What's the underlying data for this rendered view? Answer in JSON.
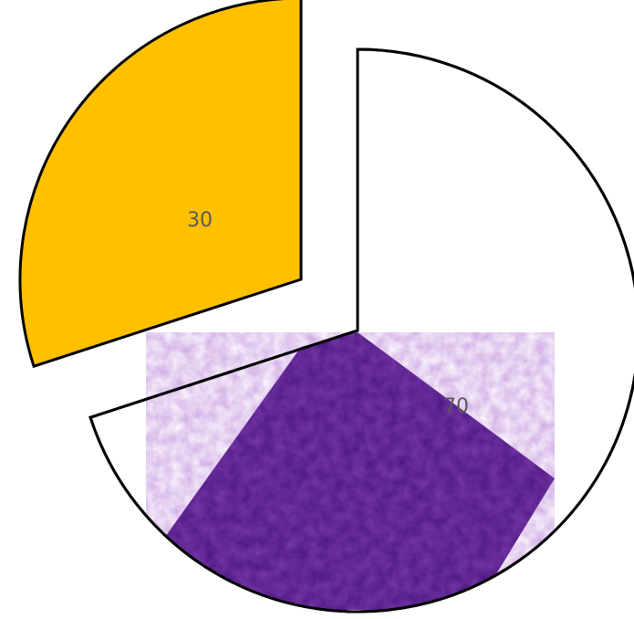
{
  "chart_data": {
    "type": "pie",
    "title": "",
    "series": [
      {
        "values": [
          70,
          30
        ],
        "data_labels": [
          "70",
          "30"
        ]
      }
    ],
    "slices": [
      {
        "value": 70,
        "label": "70",
        "fill": "#ffffff",
        "stroke": "#000000",
        "exploded": false
      },
      {
        "value": 30,
        "label": "30",
        "fill": "#ffc000",
        "stroke": "#000000",
        "exploded": true
      }
    ],
    "start_angle": "12 o'clock",
    "direction": "clockwise",
    "legend": "none",
    "overlay": {
      "type": "purple-texture-image",
      "color": "#4a1580"
    }
  }
}
